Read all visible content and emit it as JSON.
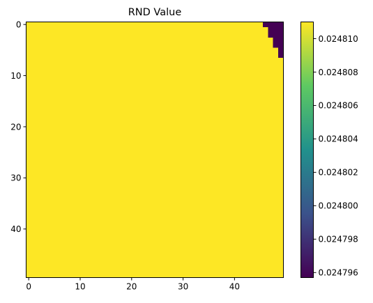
{
  "chart_data": {
    "type": "heatmap",
    "title": "RND Value",
    "xlabel": "",
    "ylabel": "",
    "grid_size": [
      50,
      50
    ],
    "xlim": [
      -0.5,
      49.5
    ],
    "ylim": [
      49.5,
      -0.5
    ],
    "x_ticks": [
      0,
      10,
      20,
      30,
      40
    ],
    "y_ticks": [
      0,
      10,
      20,
      30,
      40
    ],
    "colormap": "viridis",
    "colormap_stops": [
      "#440154",
      "#3b528b",
      "#21918c",
      "#5ec962",
      "#fde725"
    ],
    "low_color": "#440154",
    "high_color": "#fde725",
    "value_range": [
      0.0247957,
      0.024811
    ],
    "base_value": 0.024811,
    "low_value": 0.0247957,
    "low_region_cells": [
      {
        "row": 0,
        "cols": [
          46,
          49
        ]
      },
      {
        "row": 1,
        "cols": [
          47,
          49
        ]
      },
      {
        "row": 2,
        "cols": [
          47,
          49
        ]
      },
      {
        "row": 3,
        "cols": [
          48,
          49
        ]
      },
      {
        "row": 4,
        "cols": [
          48,
          49
        ]
      },
      {
        "row": 5,
        "cols": [
          49,
          49
        ]
      },
      {
        "row": 6,
        "cols": [
          49,
          49
        ]
      }
    ],
    "colorbar": {
      "ticks": [
        0.024796,
        0.024798,
        0.0248,
        0.024802,
        0.024804,
        0.024806,
        0.024808,
        0.02481
      ],
      "tick_labels": [
        "0.024796",
        "0.024798",
        "0.024800",
        "0.024802",
        "0.024804",
        "0.024806",
        "0.024808",
        "0.024810"
      ]
    }
  }
}
